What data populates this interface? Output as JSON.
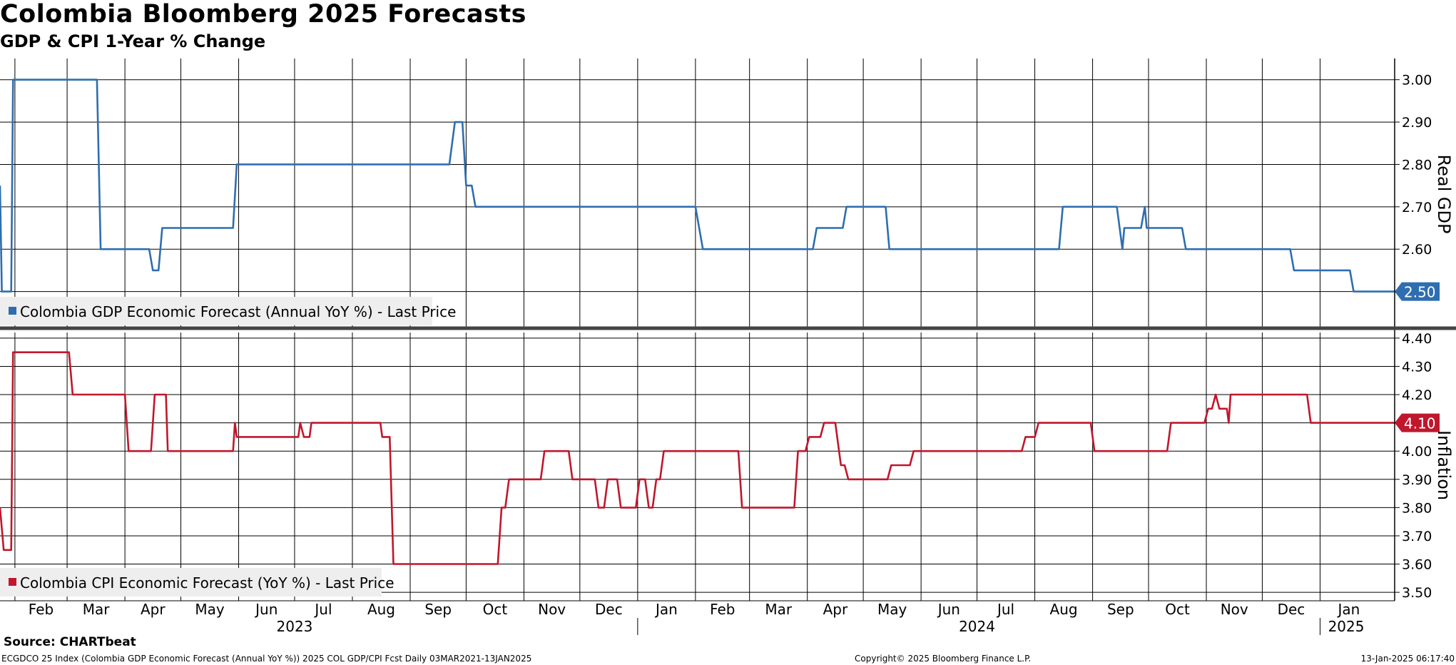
{
  "header": {
    "title": "Colombia Bloomberg 2025 Forecasts",
    "subtitle": "GDP & CPI 1-Year % Change"
  },
  "footer": {
    "source": "Source: CHARTbeat",
    "ticker_line": "ECGDCO 25 Index (Colombia GDP Economic Forecast (Annual YoY %)) 2025 COL GDP/CPI Fcst  Daily 03MAR2021-13JAN2025",
    "copyright": "Copyright© 2025 Bloomberg Finance L.P.",
    "timestamp": "13-Jan-2025 06:17:40"
  },
  "colors": {
    "gdp": "#2e6eb0",
    "cpi": "#c0172c",
    "grid": "#000000",
    "legend_bg": "#eeeeee"
  },
  "chart_data": [
    {
      "type": "line",
      "panel": "top",
      "ylabel": "Real GDP",
      "ylim": [
        2.41,
        3.05
      ],
      "yticks": [
        "3.00",
        "2.90",
        "2.80",
        "2.70",
        "2.60",
        "2.50"
      ],
      "last_value_label": "2.50",
      "legend": "Colombia GDP Economic Forecast (Annual YoY %) - Last Price",
      "series": [
        {
          "name": "Colombia GDP Economic Forecast (Annual YoY %) - Last Price",
          "color": "#2e6eb0",
          "points": [
            [
              "2023-01-24",
              2.75
            ],
            [
              "2023-01-25",
              2.5
            ],
            [
              "2023-01-30",
              2.5
            ],
            [
              "2023-01-31",
              3.0
            ],
            [
              "2023-03-17",
              3.0
            ],
            [
              "2023-03-19",
              2.6
            ],
            [
              "2023-04-14",
              2.6
            ],
            [
              "2023-04-16",
              2.55
            ],
            [
              "2023-04-19",
              2.55
            ],
            [
              "2023-04-21",
              2.65
            ],
            [
              "2023-05-29",
              2.65
            ],
            [
              "2023-05-31",
              2.8
            ],
            [
              "2023-09-22",
              2.8
            ],
            [
              "2023-09-25",
              2.9
            ],
            [
              "2023-09-29",
              2.9
            ],
            [
              "2023-10-01",
              2.75
            ],
            [
              "2023-10-04",
              2.75
            ],
            [
              "2023-10-06",
              2.7
            ],
            [
              "2024-02-01",
              2.7
            ],
            [
              "2024-02-05",
              2.6
            ],
            [
              "2024-04-04",
              2.6
            ],
            [
              "2024-04-06",
              2.65
            ],
            [
              "2024-04-20",
              2.65
            ],
            [
              "2024-04-22",
              2.7
            ],
            [
              "2024-05-13",
              2.7
            ],
            [
              "2024-05-15",
              2.6
            ],
            [
              "2024-08-14",
              2.6
            ],
            [
              "2024-08-16",
              2.7
            ],
            [
              "2024-09-14",
              2.7
            ],
            [
              "2024-09-17",
              2.6
            ],
            [
              "2024-09-18",
              2.65
            ],
            [
              "2024-09-27",
              2.65
            ],
            [
              "2024-09-29",
              2.7
            ],
            [
              "2024-09-30",
              2.65
            ],
            [
              "2024-10-19",
              2.65
            ],
            [
              "2024-10-21",
              2.6
            ],
            [
              "2024-12-16",
              2.6
            ],
            [
              "2024-12-18",
              2.55
            ],
            [
              "2025-01-17",
              2.55
            ],
            [
              "2025-01-19",
              2.5
            ],
            [
              "2025-02-10",
              2.5
            ]
          ]
        }
      ]
    },
    {
      "type": "line",
      "panel": "bottom",
      "ylabel": "Inflation",
      "ylim": [
        3.47,
        4.43
      ],
      "yticks": [
        "4.40",
        "4.30",
        "4.20",
        "4.10",
        "4.00",
        "3.90",
        "3.80",
        "3.70",
        "3.60",
        "3.50"
      ],
      "last_value_label": "4.10",
      "legend": "Colombia CPI Economic Forecast (YoY %) - Last Price",
      "series": [
        {
          "name": "Colombia CPI Economic Forecast (YoY %) - Last Price",
          "color": "#c0172c",
          "points": [
            [
              "2023-01-24",
              3.8
            ],
            [
              "2023-01-26",
              3.65
            ],
            [
              "2023-01-30",
              3.65
            ],
            [
              "2023-01-31",
              4.35
            ],
            [
              "2023-03-02",
              4.35
            ],
            [
              "2023-03-04",
              4.2
            ],
            [
              "2023-03-31",
              4.2
            ],
            [
              "2023-04-01",
              4.2
            ],
            [
              "2023-04-03",
              4.0
            ],
            [
              "2023-04-15",
              4.0
            ],
            [
              "2023-04-17",
              4.2
            ],
            [
              "2023-04-23",
              4.2
            ],
            [
              "2023-04-24",
              4.0
            ],
            [
              "2023-05-29",
              4.0
            ],
            [
              "2023-05-30",
              4.1
            ],
            [
              "2023-05-31",
              4.05
            ],
            [
              "2023-07-03",
              4.05
            ],
            [
              "2023-07-04",
              4.1
            ],
            [
              "2023-07-06",
              4.05
            ],
            [
              "2023-07-09",
              4.05
            ],
            [
              "2023-07-10",
              4.1
            ],
            [
              "2023-08-16",
              4.1
            ],
            [
              "2023-08-17",
              4.05
            ],
            [
              "2023-08-21",
              4.05
            ],
            [
              "2023-08-23",
              3.6
            ],
            [
              "2023-10-18",
              3.6
            ],
            [
              "2023-10-20",
              3.8
            ],
            [
              "2023-10-22",
              3.8
            ],
            [
              "2023-10-24",
              3.9
            ],
            [
              "2023-11-10",
              3.9
            ],
            [
              "2023-11-12",
              4.0
            ],
            [
              "2023-11-25",
              4.0
            ],
            [
              "2023-11-27",
              3.9
            ],
            [
              "2023-12-09",
              3.9
            ],
            [
              "2023-12-11",
              3.8
            ],
            [
              "2023-12-14",
              3.8
            ],
            [
              "2023-12-16",
              3.9
            ],
            [
              "2023-12-21",
              3.9
            ],
            [
              "2023-12-23",
              3.8
            ],
            [
              "2023-12-31",
              3.8
            ],
            [
              "2024-01-02",
              3.9
            ],
            [
              "2024-01-05",
              3.9
            ],
            [
              "2024-01-07",
              3.8
            ],
            [
              "2024-01-09",
              3.8
            ],
            [
              "2024-01-11",
              3.9
            ],
            [
              "2024-01-13",
              3.9
            ],
            [
              "2024-01-15",
              4.0
            ],
            [
              "2024-02-24",
              4.0
            ],
            [
              "2024-02-26",
              3.8
            ],
            [
              "2024-03-25",
              3.8
            ],
            [
              "2024-03-27",
              4.0
            ],
            [
              "2024-03-31",
              4.0
            ],
            [
              "2024-04-02",
              4.05
            ],
            [
              "2024-04-08",
              4.05
            ],
            [
              "2024-04-10",
              4.1
            ],
            [
              "2024-04-16",
              4.1
            ],
            [
              "2024-04-19",
              3.95
            ],
            [
              "2024-04-21",
              3.95
            ],
            [
              "2024-04-23",
              3.9
            ],
            [
              "2024-05-14",
              3.9
            ],
            [
              "2024-05-16",
              3.95
            ],
            [
              "2024-05-26",
              3.95
            ],
            [
              "2024-05-28",
              4.0
            ],
            [
              "2024-07-25",
              4.0
            ],
            [
              "2024-07-27",
              4.05
            ],
            [
              "2024-08-01",
              4.05
            ],
            [
              "2024-08-03",
              4.1
            ],
            [
              "2024-08-31",
              4.1
            ],
            [
              "2024-09-02",
              4.0
            ],
            [
              "2024-10-11",
              4.0
            ],
            [
              "2024-10-13",
              4.1
            ],
            [
              "2024-10-31",
              4.1
            ],
            [
              "2024-11-02",
              4.15
            ],
            [
              "2024-11-04",
              4.15
            ],
            [
              "2024-11-06",
              4.2
            ],
            [
              "2024-11-08",
              4.15
            ],
            [
              "2024-11-12",
              4.15
            ],
            [
              "2024-11-13",
              4.1
            ],
            [
              "2024-11-14",
              4.2
            ],
            [
              "2024-12-25",
              4.2
            ],
            [
              "2024-12-27",
              4.1
            ],
            [
              "2025-02-10",
              4.1
            ]
          ]
        }
      ]
    }
  ],
  "x_axis": {
    "months": [
      {
        "label": "Feb",
        "date": "2023-02-01"
      },
      {
        "label": "Mar",
        "date": "2023-03-01"
      },
      {
        "label": "Apr",
        "date": "2023-04-01"
      },
      {
        "label": "May",
        "date": "2023-05-01"
      },
      {
        "label": "Jun",
        "date": "2023-06-01"
      },
      {
        "label": "Jul",
        "date": "2023-07-01"
      },
      {
        "label": "Aug",
        "date": "2023-08-01"
      },
      {
        "label": "Sep",
        "date": "2023-09-01"
      },
      {
        "label": "Oct",
        "date": "2023-10-01"
      },
      {
        "label": "Nov",
        "date": "2023-11-01"
      },
      {
        "label": "Dec",
        "date": "2023-12-01"
      },
      {
        "label": "Jan",
        "date": "2024-01-01"
      },
      {
        "label": "Feb",
        "date": "2024-02-01"
      },
      {
        "label": "Mar",
        "date": "2024-03-01"
      },
      {
        "label": "Apr",
        "date": "2024-04-01"
      },
      {
        "label": "May",
        "date": "2024-05-01"
      },
      {
        "label": "Jun",
        "date": "2024-06-01"
      },
      {
        "label": "Jul",
        "date": "2024-07-01"
      },
      {
        "label": "Aug",
        "date": "2024-08-01"
      },
      {
        "label": "Sep",
        "date": "2024-09-01"
      },
      {
        "label": "Oct",
        "date": "2024-10-01"
      },
      {
        "label": "Nov",
        "date": "2024-11-01"
      },
      {
        "label": "Dec",
        "date": "2024-12-01"
      },
      {
        "label": "Jan",
        "date": "2025-01-01"
      }
    ],
    "years": [
      {
        "label": "2023",
        "date": "2023-07-01"
      },
      {
        "label": "2024",
        "date": "2024-07-01"
      },
      {
        "label": "2025",
        "date": "2025-01-15"
      }
    ]
  }
}
